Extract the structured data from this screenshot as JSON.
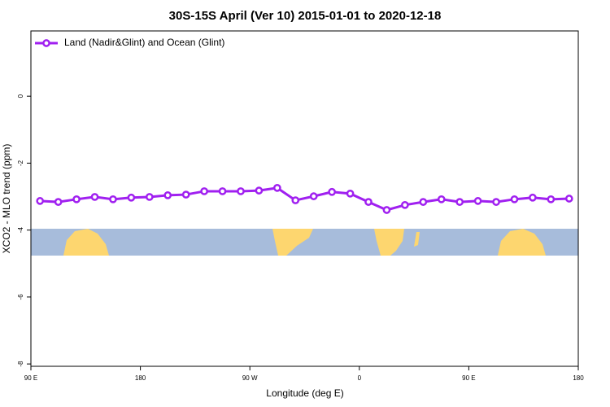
{
  "chart_data": {
    "type": "line",
    "title": "30S-15S April (Ver 10)   2015-01-01 to 2020-12-18",
    "x_label": "Longitude (deg E)",
    "y_label": "XCO2 - MLO trend (ppm)",
    "xlim": [
      90,
      540
    ],
    "xticks": [
      {
        "value": 90,
        "label": "90 E"
      },
      180,
      {
        "value": 270,
        "label": "90 W"
      },
      {
        "value": 360,
        "label": "0"
      },
      {
        "value": 450,
        "label": "90 E"
      },
      {
        "value": 540,
        "label": "180"
      }
    ],
    "ylim": [
      -8.07,
      1.95
    ],
    "yticks": [
      0,
      -2,
      -4,
      -6,
      -8
    ],
    "legend": "upper left",
    "x": [
      97.5,
      112.5,
      127.5,
      142.5,
      157.5,
      172.5,
      187.5,
      202.5,
      217.5,
      232.5,
      247.5,
      262.5,
      277.5,
      292.5,
      307.5,
      322.5,
      337.5,
      352.5,
      367.5,
      382.5,
      397.5,
      412.5,
      427.5,
      442.5,
      457.5,
      472.5,
      487.5,
      502.5,
      517.5,
      532.5
    ],
    "series": [
      {
        "name": "Land (Nadir&Glint) and Ocean (Glint)",
        "color": "#a020f0",
        "values": [
          -3.13,
          -3.16,
          -3.08,
          -3.01,
          -3.08,
          -3.03,
          -3.01,
          -2.96,
          -2.94,
          -2.84,
          -2.84,
          -2.84,
          -2.82,
          -2.74,
          -3.11,
          -2.99,
          -2.86,
          -2.91,
          -3.16,
          -3.4,
          -3.25,
          -3.16,
          -3.08,
          -3.16,
          -3.13,
          -3.16,
          -3.08,
          -3.03,
          -3.08,
          -3.06
        ]
      }
    ]
  }
}
